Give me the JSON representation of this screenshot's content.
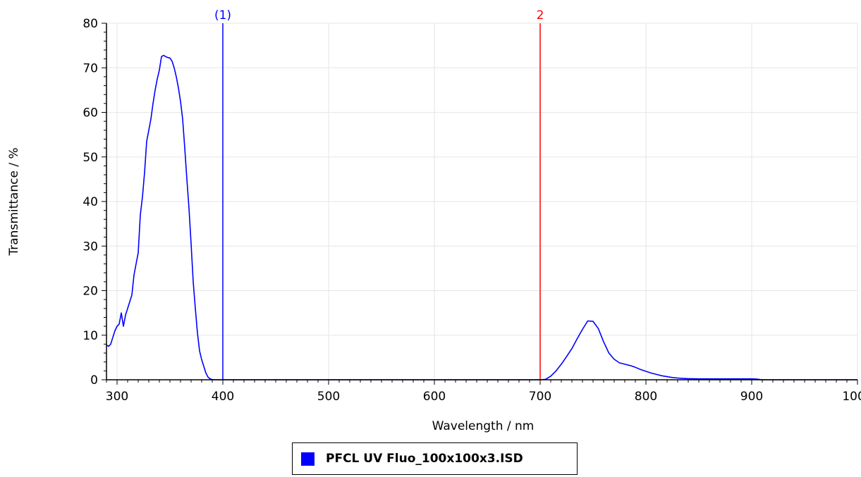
{
  "chart_data": {
    "type": "line",
    "xlabel": "Wavelength / nm",
    "ylabel": "Transmittance / %",
    "xlim": [
      290,
      1000
    ],
    "ylim": [
      0,
      80
    ],
    "x_ticks": [
      300,
      400,
      500,
      600,
      700,
      800,
      900,
      1000
    ],
    "y_ticks": [
      0,
      10,
      20,
      30,
      40,
      50,
      60,
      70,
      80
    ],
    "grid": true,
    "legend_position": "bottom-center",
    "series": [
      {
        "name": "PFCL UV Fluo_100x100x3.ISD",
        "color": "#0000ff",
        "x": [
          290,
          292,
          294,
          296,
          298,
          300,
          302,
          304,
          306,
          308,
          310,
          312,
          314,
          316,
          318,
          320,
          322,
          324,
          326,
          328,
          330,
          332,
          334,
          336,
          338,
          340,
          342,
          344,
          346,
          348,
          350,
          352,
          354,
          356,
          358,
          360,
          362,
          364,
          366,
          368,
          370,
          372,
          374,
          376,
          378,
          380,
          382,
          384,
          386,
          388,
          390,
          392,
          394,
          396,
          398,
          400,
          402,
          404,
          410,
          450,
          500,
          600,
          700,
          705,
          710,
          715,
          720,
          725,
          730,
          735,
          740,
          745,
          750,
          755,
          760,
          765,
          770,
          775,
          780,
          785,
          790,
          795,
          800,
          805,
          810,
          815,
          820,
          825,
          830,
          835,
          840,
          850,
          860,
          870,
          880,
          890,
          900,
          905,
          908,
          910,
          950,
          1000
        ],
        "y": [
          7.8,
          7.5,
          8,
          9.5,
          11,
          12,
          12.5,
          15,
          12,
          14.5,
          16,
          17.5,
          19,
          23.5,
          26,
          28.5,
          37,
          41,
          46.5,
          53.5,
          56,
          58.5,
          62,
          65,
          67.5,
          69.5,
          72.5,
          72.8,
          72.5,
          72.3,
          72.2,
          71.5,
          70,
          68,
          65.5,
          62.5,
          58.5,
          52,
          45,
          38.5,
          30.5,
          22,
          16,
          10.5,
          6.5,
          4.5,
          3,
          1.5,
          0.6,
          0.2,
          0.05,
          0,
          0,
          0,
          0,
          0,
          0,
          0,
          0,
          0,
          0,
          0,
          0,
          0.1,
          0.8,
          2,
          3.5,
          5.2,
          7,
          9.2,
          11.3,
          13.2,
          13.1,
          11.5,
          8.5,
          6,
          4.6,
          3.8,
          3.5,
          3.2,
          2.8,
          2.3,
          1.9,
          1.5,
          1.2,
          0.9,
          0.7,
          0.5,
          0.4,
          0.3,
          0.25,
          0.2,
          0.2,
          0.2,
          0.2,
          0.2,
          0.2,
          0.15,
          0.05,
          0,
          0,
          0
        ]
      }
    ],
    "markers": [
      {
        "label": "(1)",
        "x": 400,
        "color": "#0000ff"
      },
      {
        "label": "2",
        "x": 700,
        "color": "#ff0000"
      }
    ]
  }
}
